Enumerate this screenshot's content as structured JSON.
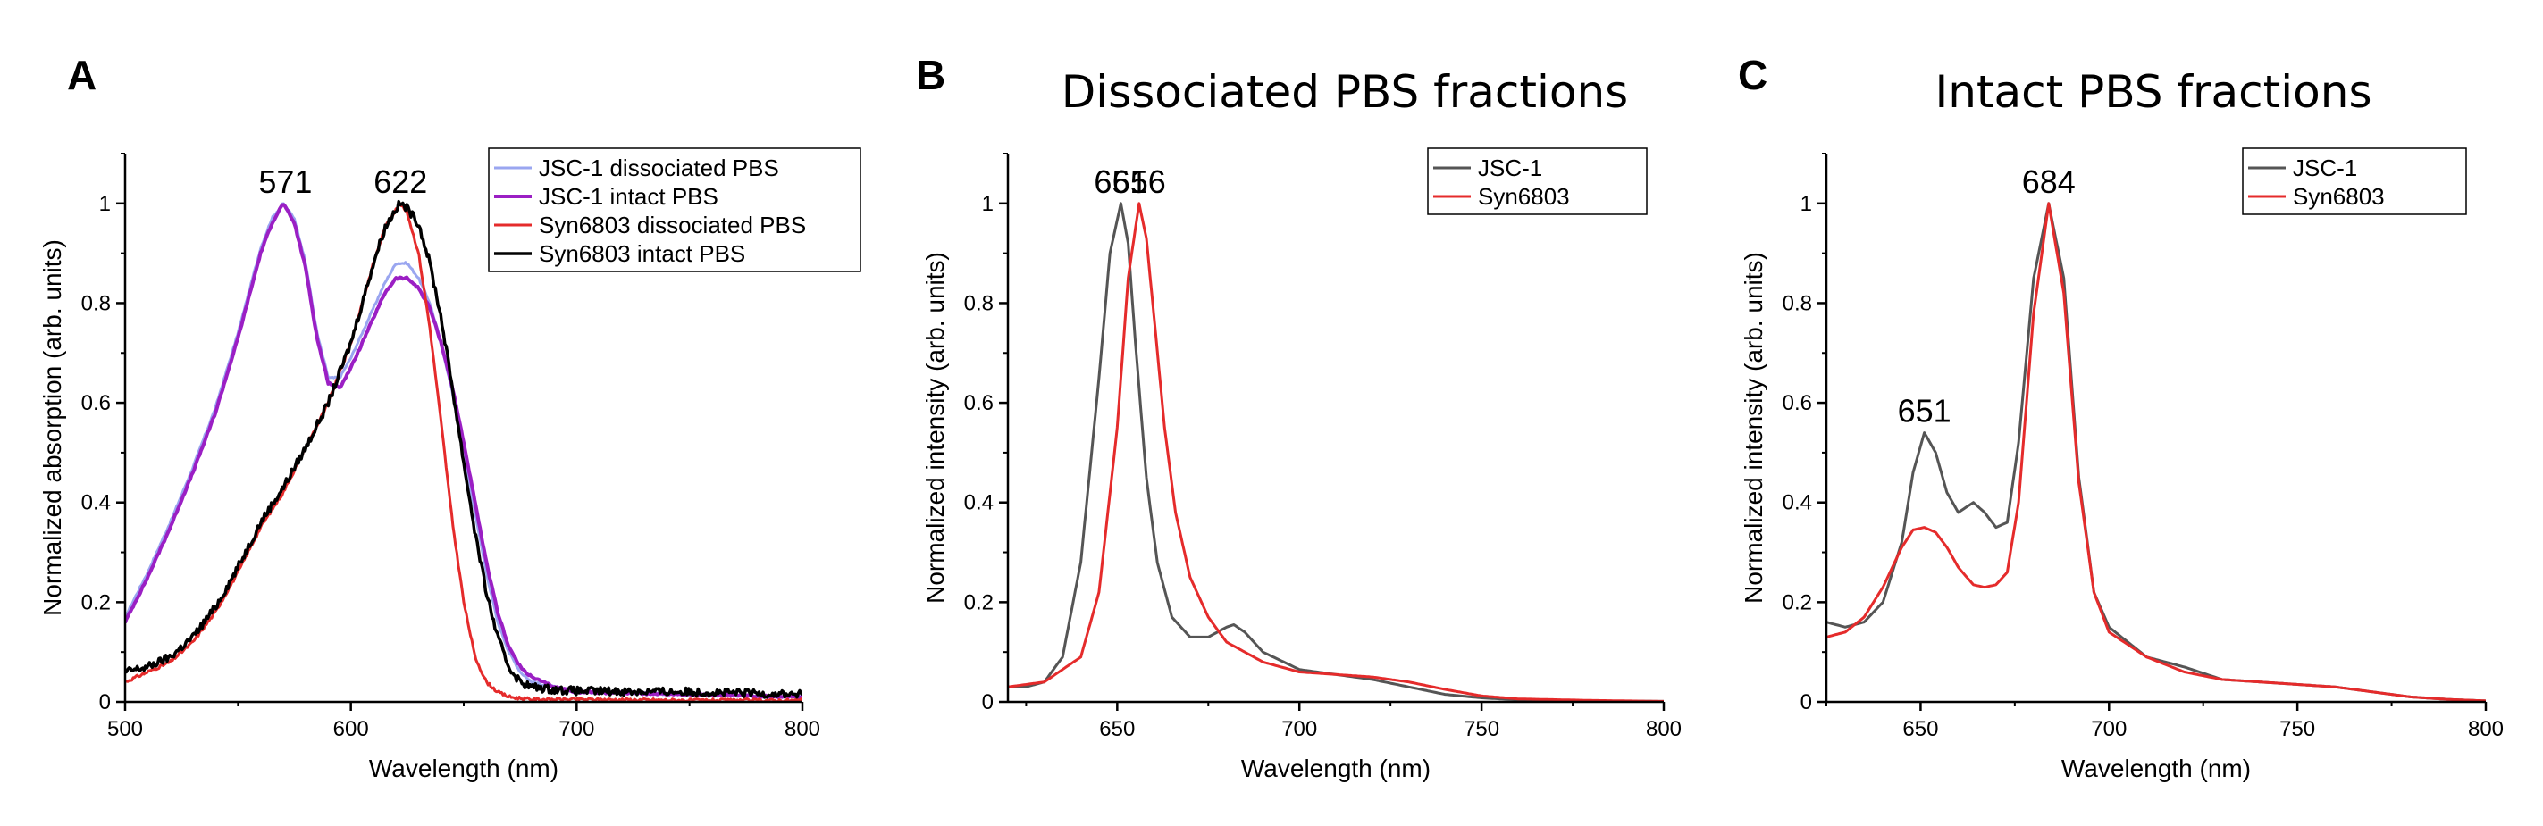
{
  "chart_data": [
    {
      "panel": "A",
      "type": "line",
      "title": "",
      "xlabel": "Wavelength (nm)",
      "ylabel": "Normalized absorption (arb. units)",
      "xlim": [
        500,
        800
      ],
      "ylim": [
        0,
        1.1
      ],
      "xticks": [
        500,
        600,
        700,
        800
      ],
      "yticks": [
        0,
        0.2,
        0.4,
        0.6,
        0.8,
        1
      ],
      "legend_position": "top-right",
      "legend_boxed": true,
      "annotations": [
        {
          "text": "571",
          "x": 571,
          "y": 1.0
        },
        {
          "text": "622",
          "x": 622,
          "y": 1.0
        }
      ],
      "series": [
        {
          "name": "JSC-1 dissociated PBS",
          "color": "#9aa6f0",
          "width": 3,
          "noise": 0.002,
          "x": [
            500,
            510,
            520,
            530,
            540,
            550,
            560,
            565,
            570,
            575,
            580,
            585,
            590,
            595,
            600,
            605,
            610,
            615,
            620,
            625,
            630,
            635,
            640,
            645,
            650,
            655,
            660,
            665,
            670,
            675,
            680,
            690,
            700,
            750,
            800
          ],
          "y": [
            0.17,
            0.26,
            0.36,
            0.47,
            0.59,
            0.74,
            0.91,
            0.97,
            1.0,
            0.97,
            0.88,
            0.74,
            0.65,
            0.65,
            0.69,
            0.74,
            0.79,
            0.84,
            0.88,
            0.88,
            0.85,
            0.8,
            0.72,
            0.62,
            0.5,
            0.38,
            0.26,
            0.16,
            0.1,
            0.06,
            0.04,
            0.03,
            0.02,
            0.015,
            0.01
          ]
        },
        {
          "name": "JSC-1 intact PBS",
          "color": "#9b1fc4",
          "width": 4,
          "noise": 0.002,
          "x": [
            500,
            510,
            520,
            530,
            540,
            550,
            560,
            565,
            570,
            575,
            580,
            585,
            590,
            595,
            600,
            605,
            610,
            615,
            620,
            625,
            630,
            635,
            640,
            645,
            650,
            655,
            660,
            665,
            670,
            675,
            680,
            690,
            700,
            750,
            800
          ],
          "y": [
            0.16,
            0.25,
            0.35,
            0.46,
            0.58,
            0.73,
            0.9,
            0.96,
            1.0,
            0.96,
            0.87,
            0.73,
            0.64,
            0.63,
            0.67,
            0.72,
            0.77,
            0.82,
            0.85,
            0.85,
            0.83,
            0.79,
            0.72,
            0.63,
            0.52,
            0.4,
            0.28,
            0.18,
            0.11,
            0.07,
            0.05,
            0.03,
            0.02,
            0.015,
            0.01
          ]
        },
        {
          "name": "Syn6803 dissociated PBS",
          "color": "#e52b2b",
          "width": 3,
          "noise": 0.003,
          "x": [
            500,
            510,
            520,
            530,
            540,
            550,
            560,
            570,
            580,
            590,
            600,
            605,
            610,
            615,
            620,
            622,
            625,
            630,
            635,
            640,
            645,
            650,
            655,
            660,
            665,
            670,
            680,
            700,
            750,
            800
          ],
          "y": [
            0.04,
            0.06,
            0.08,
            0.12,
            0.18,
            0.26,
            0.35,
            0.42,
            0.51,
            0.6,
            0.72,
            0.8,
            0.88,
            0.95,
            0.99,
            1.0,
            0.98,
            0.9,
            0.75,
            0.56,
            0.36,
            0.2,
            0.09,
            0.04,
            0.02,
            0.01,
            0.005,
            0.005,
            0.003,
            0.003
          ]
        },
        {
          "name": "Syn6803 intact PBS",
          "color": "#000000",
          "width": 3.5,
          "noise": 0.008,
          "x": [
            500,
            510,
            520,
            530,
            540,
            550,
            560,
            570,
            580,
            590,
            600,
            605,
            610,
            615,
            620,
            622,
            625,
            630,
            635,
            640,
            645,
            650,
            655,
            660,
            665,
            670,
            675,
            680,
            690,
            700,
            750,
            800
          ],
          "y": [
            0.06,
            0.07,
            0.09,
            0.13,
            0.19,
            0.27,
            0.36,
            0.43,
            0.51,
            0.6,
            0.72,
            0.8,
            0.88,
            0.95,
            0.99,
            1.0,
            0.99,
            0.96,
            0.88,
            0.77,
            0.63,
            0.48,
            0.34,
            0.22,
            0.13,
            0.07,
            0.04,
            0.03,
            0.025,
            0.022,
            0.02,
            0.015
          ]
        }
      ]
    },
    {
      "panel": "B",
      "type": "line",
      "title": "Dissociated PBS fractions",
      "xlabel": "Wavelength (nm)",
      "ylabel": "Normalized intensity (arb. units)",
      "xlim": [
        620,
        800
      ],
      "ylim": [
        0,
        1.1
      ],
      "xticks": [
        650,
        700,
        750,
        800
      ],
      "yticks": [
        0,
        0.2,
        0.4,
        0.6,
        0.8,
        1
      ],
      "legend_position": "top-right",
      "legend_boxed": true,
      "annotations": [
        {
          "text": "651",
          "x": 651,
          "y": 1.0
        },
        {
          "text": "656",
          "x": 656,
          "y": 1.0
        }
      ],
      "series": [
        {
          "name": "JSC-1",
          "color": "#555555",
          "width": 3,
          "noise": 0,
          "x": [
            620,
            625,
            630,
            635,
            640,
            645,
            648,
            651,
            653,
            655,
            658,
            661,
            665,
            670,
            675,
            680,
            682,
            685,
            690,
            700,
            710,
            720,
            730,
            740,
            750,
            760,
            780,
            800
          ],
          "y": [
            0.03,
            0.03,
            0.04,
            0.09,
            0.28,
            0.65,
            0.9,
            1.0,
            0.92,
            0.72,
            0.45,
            0.28,
            0.17,
            0.13,
            0.13,
            0.15,
            0.155,
            0.14,
            0.1,
            0.065,
            0.055,
            0.045,
            0.03,
            0.015,
            0.008,
            0.004,
            0.002,
            0.001
          ]
        },
        {
          "name": "Syn6803",
          "color": "#e52b2b",
          "width": 3,
          "noise": 0,
          "x": [
            620,
            630,
            640,
            645,
            650,
            653,
            656,
            658,
            660,
            663,
            666,
            670,
            675,
            680,
            685,
            690,
            700,
            710,
            720,
            730,
            740,
            750,
            760,
            780,
            800
          ],
          "y": [
            0.03,
            0.04,
            0.09,
            0.22,
            0.55,
            0.85,
            1.0,
            0.93,
            0.78,
            0.55,
            0.38,
            0.25,
            0.17,
            0.12,
            0.1,
            0.08,
            0.06,
            0.055,
            0.05,
            0.04,
            0.025,
            0.012,
            0.006,
            0.003,
            0.001
          ]
        }
      ]
    },
    {
      "panel": "C",
      "type": "line",
      "title": "Intact PBS fractions",
      "xlabel": "Wavelength (nm)",
      "ylabel": "Normalized intensity (arb. units)",
      "xlim": [
        625,
        800
      ],
      "ylim": [
        0,
        1.1
      ],
      "xticks": [
        650,
        700,
        750,
        800
      ],
      "yticks": [
        0,
        0.2,
        0.4,
        0.6,
        0.8,
        1
      ],
      "legend_position": "top-right",
      "legend_boxed": true,
      "annotations": [
        {
          "text": "651",
          "x": 651,
          "y": 0.54
        },
        {
          "text": "684",
          "x": 684,
          "y": 1.0
        }
      ],
      "series": [
        {
          "name": "JSC-1",
          "color": "#555555",
          "width": 3,
          "noise": 0,
          "x": [
            625,
            630,
            635,
            640,
            645,
            648,
            651,
            654,
            657,
            660,
            664,
            667,
            670,
            673,
            676,
            680,
            684,
            688,
            692,
            696,
            700,
            710,
            720,
            730,
            740,
            750,
            760,
            770,
            780,
            790,
            800
          ],
          "y": [
            0.16,
            0.15,
            0.16,
            0.2,
            0.32,
            0.46,
            0.54,
            0.5,
            0.42,
            0.38,
            0.4,
            0.38,
            0.35,
            0.36,
            0.52,
            0.85,
            1.0,
            0.85,
            0.45,
            0.22,
            0.15,
            0.09,
            0.07,
            0.045,
            0.04,
            0.035,
            0.03,
            0.02,
            0.01,
            0.005,
            0.002
          ]
        },
        {
          "name": "Syn6803",
          "color": "#e52b2b",
          "width": 3,
          "noise": 0,
          "x": [
            625,
            630,
            635,
            640,
            645,
            648,
            651,
            654,
            657,
            660,
            664,
            667,
            670,
            673,
            676,
            680,
            684,
            688,
            692,
            696,
            700,
            710,
            720,
            730,
            740,
            750,
            760,
            770,
            780,
            790,
            800
          ],
          "y": [
            0.13,
            0.14,
            0.17,
            0.23,
            0.31,
            0.345,
            0.35,
            0.34,
            0.31,
            0.27,
            0.235,
            0.23,
            0.235,
            0.26,
            0.4,
            0.78,
            1.0,
            0.82,
            0.44,
            0.22,
            0.14,
            0.09,
            0.06,
            0.045,
            0.04,
            0.035,
            0.03,
            0.02,
            0.01,
            0.005,
            0.002
          ]
        }
      ]
    }
  ]
}
